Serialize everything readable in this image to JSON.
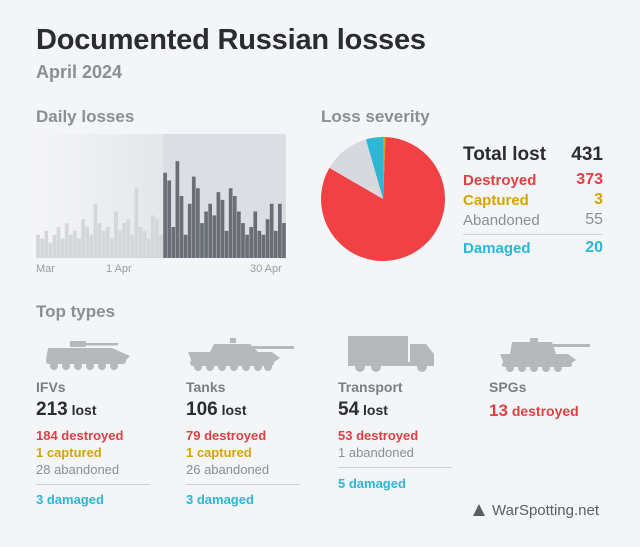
{
  "header": {
    "title": "Documented Russian losses",
    "subtitle": "April 2024"
  },
  "daily": {
    "section_title": "Daily losses",
    "x_labels": [
      "Mar",
      "1 Apr",
      "30 Apr"
    ]
  },
  "chart_data": [
    {
      "type": "bar",
      "title": "Daily losses",
      "xlabel": "",
      "ylabel": "",
      "x_ticks": [
        "Mar",
        "1 Apr",
        "30 Apr"
      ],
      "series": [
        {
          "period": "March",
          "values": [
            6,
            5,
            7,
            4,
            6,
            8,
            5,
            9,
            6,
            7,
            5,
            10,
            8,
            6,
            14,
            9,
            7,
            8,
            5,
            12,
            7,
            9,
            10,
            6,
            18,
            8,
            7,
            5,
            11,
            10,
            6
          ]
        },
        {
          "period": "April",
          "values": [
            22,
            20,
            8,
            25,
            16,
            6,
            14,
            21,
            18,
            9,
            12,
            14,
            11,
            17,
            15,
            7,
            18,
            16,
            12,
            9,
            6,
            8,
            12,
            7,
            6,
            10,
            14,
            7,
            14,
            9
          ]
        }
      ],
      "ylim": [
        0,
        32
      ],
      "grid": false
    },
    {
      "type": "pie",
      "title": "Loss severity",
      "labels": [
        "Destroyed",
        "Captured",
        "Abandoned",
        "Damaged"
      ],
      "values": [
        373,
        3,
        55,
        20
      ],
      "colors": [
        "#f04245",
        "#d4a500",
        "#d7d9de",
        "#2bb7d7"
      ]
    }
  ],
  "severity": {
    "section_title": "Loss severity",
    "total_label": "Total lost",
    "total_value": "431",
    "destroyed_label": "Destroyed",
    "destroyed_value": "373",
    "captured_label": "Captured",
    "captured_value": "3",
    "abandoned_label": "Abandoned",
    "abandoned_value": "55",
    "damaged_label": "Damaged",
    "damaged_value": "20"
  },
  "types": {
    "section_title": "Top types",
    "lost_word": "lost",
    "items": [
      {
        "icon": "ifv-icon",
        "name": "IFVs",
        "lost": "213",
        "destroyed": "184 destroyed",
        "captured": "1 captured",
        "abandoned": "28 abandoned",
        "damaged": "3 damaged"
      },
      {
        "icon": "tank-icon",
        "name": "Tanks",
        "lost": "106",
        "destroyed": "79 destroyed",
        "captured": "1 captured",
        "abandoned": "26 abandoned",
        "damaged": "3 damaged"
      },
      {
        "icon": "truck-icon",
        "name": "Transport",
        "lost": "54",
        "destroyed": "53 destroyed",
        "abandoned": "1 abandoned",
        "damaged": "5 damaged"
      },
      {
        "icon": "spg-icon",
        "name": "SPGs",
        "lost_destroyed_value": "13",
        "lost_destroyed_word": "destroyed"
      }
    ]
  },
  "footer": {
    "brand": "WarSpotting.net",
    "brand_icon": "triangle-icon"
  },
  "colors": {
    "background": "#f4f5f7",
    "bar_march": "#d4d6da",
    "bar_april": "#6a6e76",
    "highlight_band": "#dcdee3"
  }
}
